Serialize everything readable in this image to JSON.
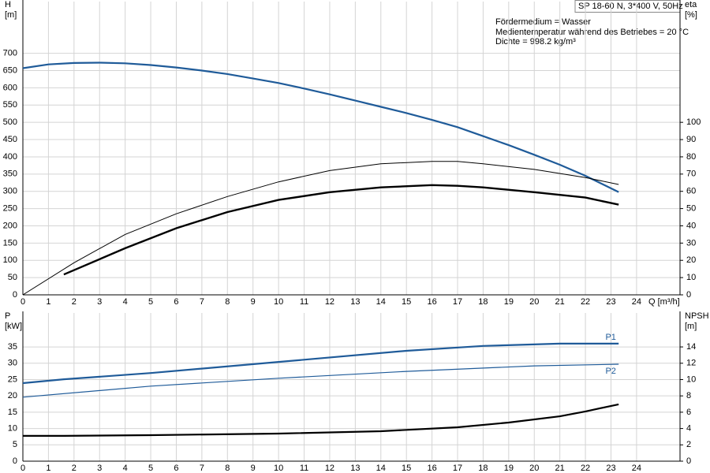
{
  "info_box": {
    "title": "SP 18-60 N, 3*400 V, 50Hz",
    "lines": [
      "Fördermedium = Wasser",
      "Medientemperatur während des Betriebes = 20 °C",
      "Dichte = 998.2 kg/m³"
    ]
  },
  "chart_data": [
    {
      "type": "line",
      "y_label": [
        "H",
        "[m]"
      ],
      "y2_label": [
        "eta",
        "[%]"
      ],
      "x_label": "Q [m³/h]",
      "xlim": [
        0,
        25.7
      ],
      "xticks": [
        0,
        1,
        2,
        3,
        4,
        5,
        6,
        7,
        8,
        9,
        10,
        11,
        12,
        13,
        14,
        15,
        16,
        17,
        18,
        19,
        20,
        21,
        22,
        23,
        24
      ],
      "ylim": [
        0,
        850
      ],
      "yticks": [
        0,
        50,
        100,
        150,
        200,
        250,
        300,
        350,
        400,
        450,
        500,
        550,
        600,
        650,
        700
      ],
      "y2lim": [
        0,
        170
      ],
      "y2ticks": [
        0,
        10,
        20,
        30,
        40,
        50,
        60,
        70,
        80,
        90,
        100
      ],
      "grid": true,
      "series": [
        {
          "color": "#1f5b99",
          "width": 2.2,
          "x": [
            0,
            1,
            2,
            3,
            4,
            5,
            6,
            7,
            8,
            9,
            10,
            11,
            12,
            13,
            14,
            15,
            16,
            17,
            18,
            19,
            20,
            21,
            22,
            23.3
          ],
          "values": [
            657,
            668,
            672,
            673,
            671,
            666,
            659,
            650,
            640,
            627,
            614,
            598,
            581,
            563,
            545,
            527,
            507,
            486,
            460,
            434,
            406,
            377,
            345,
            298
          ]
        },
        {
          "color": "#000000",
          "width": 1,
          "axis": "y2",
          "x": [
            0,
            2,
            4,
            6,
            8,
            10,
            12,
            14,
            16,
            17,
            18,
            20,
            22,
            23.3
          ],
          "values": [
            0,
            18.6,
            35,
            47,
            57,
            65.5,
            72,
            76,
            77.3,
            77.3,
            76,
            72.7,
            68,
            64
          ]
        },
        {
          "color": "#000000",
          "width": 2.4,
          "axis": "y2",
          "x": [
            1.6,
            4,
            6,
            8,
            10,
            12,
            14,
            16,
            17,
            18,
            20,
            22,
            23.3
          ],
          "values": [
            11.8,
            27,
            38.6,
            48,
            55,
            59.5,
            62.3,
            63.6,
            63.2,
            62.3,
            59.5,
            56.4,
            52.3
          ]
        }
      ]
    },
    {
      "type": "line",
      "y_label": [
        "P",
        "[kW]"
      ],
      "y2_label": [
        "NPSH",
        "[m]"
      ],
      "xlim": [
        0,
        25.7
      ],
      "xticks": [
        0,
        1,
        2,
        3,
        4,
        5,
        6,
        7,
        8,
        9,
        10,
        11,
        12,
        13,
        14,
        15,
        16,
        17,
        18,
        19,
        20,
        21,
        22,
        23,
        24
      ],
      "ylim": [
        0,
        45.4
      ],
      "yticks": [
        0,
        5,
        10,
        15,
        20,
        25,
        30,
        35
      ],
      "y2lim": [
        0,
        18.16
      ],
      "y2ticks": [
        0,
        2,
        4,
        6,
        8,
        10,
        12,
        14
      ],
      "grid": true,
      "series": [
        {
          "name": "P1",
          "color": "#1f5b99",
          "width": 2.2,
          "x": [
            0,
            1.6,
            5,
            10,
            15,
            18,
            21,
            23.3
          ],
          "values": [
            23.9,
            25.1,
            27,
            30.4,
            33.8,
            35.3,
            36,
            36
          ]
        },
        {
          "name": "P2",
          "color": "#1f5b99",
          "width": 1.2,
          "x": [
            0,
            5,
            10,
            15,
            20,
            23.3
          ],
          "values": [
            19.6,
            23,
            25.4,
            27.5,
            29.2,
            29.7
          ]
        },
        {
          "color": "#000000",
          "width": 2.2,
          "axis": "y2",
          "x": [
            0,
            1.6,
            5,
            10,
            14,
            17,
            19,
            21,
            22,
            23.3
          ],
          "values": [
            3.1,
            3.1,
            3.19,
            3.38,
            3.67,
            4.15,
            4.73,
            5.5,
            6.1,
            6.96
          ]
        }
      ]
    }
  ]
}
